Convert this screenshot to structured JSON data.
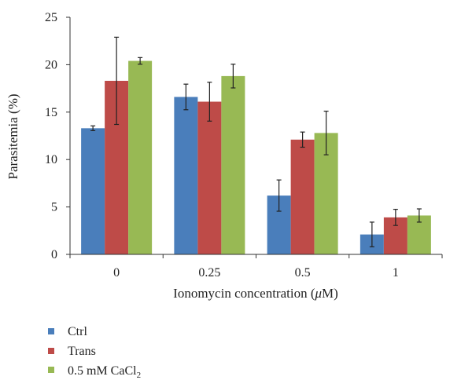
{
  "chart_data": {
    "type": "bar",
    "categories": [
      "0",
      "0.25",
      "0.5",
      "1"
    ],
    "series": [
      {
        "name": "Ctrl",
        "color": "#4a7ebb",
        "values": [
          13.3,
          16.6,
          6.2,
          2.1
        ],
        "errors": [
          0.25,
          1.35,
          1.65,
          1.3
        ]
      },
      {
        "name": "Trans",
        "color": "#be4b48",
        "values": [
          18.3,
          16.1,
          12.1,
          3.9
        ],
        "errors": [
          4.6,
          2.05,
          0.8,
          0.85
        ]
      },
      {
        "name": "0.5 mM CaCl",
        "name_sub": "2",
        "color": "#98b954",
        "values": [
          20.4,
          18.8,
          12.8,
          4.1
        ],
        "errors": [
          0.35,
          1.25,
          2.3,
          0.7
        ]
      }
    ],
    "ylim": [
      0,
      25
    ],
    "yticks": [
      "0",
      "5",
      "10",
      "15",
      "20",
      "25"
    ],
    "xlabel": {
      "pre": "Ionomycin concentration (",
      "mu": "μ",
      "post": "M)"
    },
    "ylabel": "Parasitemia (%)",
    "grid": false,
    "legend_position": "bottom-left"
  }
}
